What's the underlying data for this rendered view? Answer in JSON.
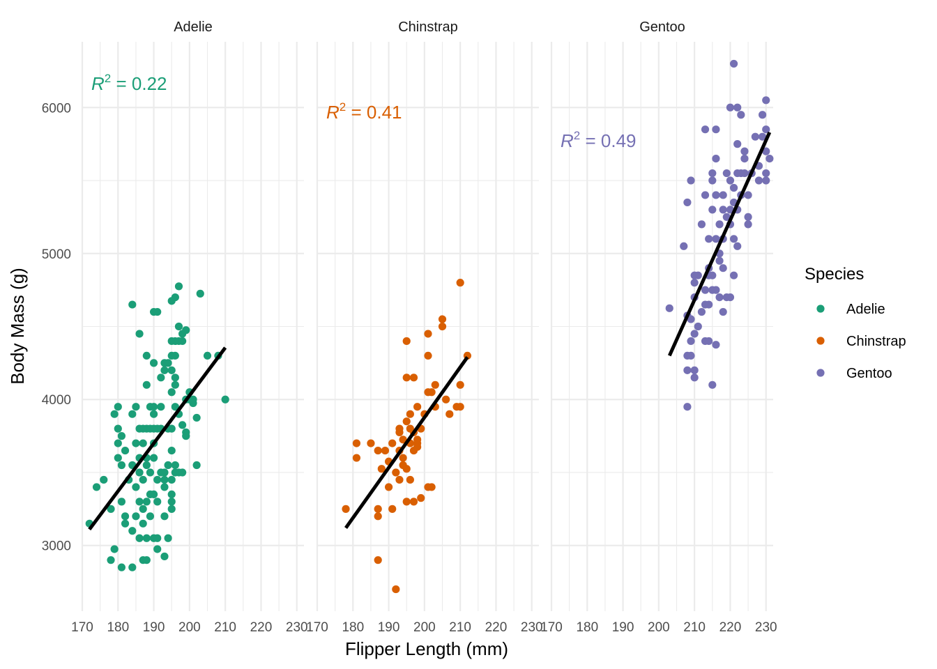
{
  "chart_data": {
    "type": "scatter",
    "xlabel": "Flipper Length (mm)",
    "ylabel": "Body Mass (g)",
    "xlim": [
      170,
      232
    ],
    "ylim": [
      2550,
      6450
    ],
    "x_ticks": [
      170,
      180,
      190,
      200,
      210,
      220,
      230
    ],
    "y_ticks": [
      3000,
      4000,
      5000,
      6000
    ],
    "grid": true,
    "legend": {
      "title": "Species",
      "position": "right",
      "entries": [
        {
          "label": "Adelie",
          "color": "#1B9E77"
        },
        {
          "label": "Chinstrap",
          "color": "#D95F02"
        },
        {
          "label": "Gentoo",
          "color": "#7570B3"
        }
      ]
    },
    "panels": [
      {
        "title": "Adelie",
        "color": "#1B9E77",
        "r2_prefix": "R",
        "r2_exp": "2",
        "r2_value": " = 0.22",
        "fit": {
          "x": [
            172,
            210
          ],
          "y": [
            3110,
            4355
          ]
        },
        "points": [
          [
            172,
            3150
          ],
          [
            174,
            3400
          ],
          [
            176,
            3450
          ],
          [
            178,
            3250
          ],
          [
            178,
            2900
          ],
          [
            179,
            3900
          ],
          [
            179,
            2975
          ],
          [
            180,
            3800
          ],
          [
            180,
            3950
          ],
          [
            180,
            3700
          ],
          [
            180,
            3600
          ],
          [
            181,
            3300
          ],
          [
            181,
            3550
          ],
          [
            181,
            3750
          ],
          [
            181,
            2850
          ],
          [
            182,
            3150
          ],
          [
            182,
            3650
          ],
          [
            182,
            3200
          ],
          [
            183,
            3450
          ],
          [
            184,
            3550
          ],
          [
            184,
            3100
          ],
          [
            184,
            4650
          ],
          [
            184,
            3900
          ],
          [
            184,
            2850
          ],
          [
            185,
            3950
          ],
          [
            185,
            3700
          ],
          [
            185,
            3400
          ],
          [
            185,
            3200
          ],
          [
            186,
            4450
          ],
          [
            186,
            3800
          ],
          [
            186,
            3600
          ],
          [
            186,
            3300
          ],
          [
            186,
            3050
          ],
          [
            186,
            3500
          ],
          [
            187,
            3800
          ],
          [
            187,
            3700
          ],
          [
            187,
            3250
          ],
          [
            187,
            3450
          ],
          [
            187,
            2900
          ],
          [
            187,
            3150
          ],
          [
            188,
            4300
          ],
          [
            188,
            4100
          ],
          [
            188,
            3800
          ],
          [
            188,
            3600
          ],
          [
            188,
            3300
          ],
          [
            188,
            3550
          ],
          [
            188,
            3050
          ],
          [
            188,
            2900
          ],
          [
            189,
            3950
          ],
          [
            189,
            3800
          ],
          [
            189,
            3350
          ],
          [
            189,
            3200
          ],
          [
            189,
            3500
          ],
          [
            190,
            4600
          ],
          [
            190,
            4250
          ],
          [
            190,
            3950
          ],
          [
            190,
            3900
          ],
          [
            190,
            3800
          ],
          [
            190,
            3700
          ],
          [
            190,
            3600
          ],
          [
            190,
            3350
          ],
          [
            190,
            3050
          ],
          [
            191,
            4600
          ],
          [
            191,
            3800
          ],
          [
            191,
            3450
          ],
          [
            191,
            3300
          ],
          [
            191,
            3050
          ],
          [
            191,
            2975
          ],
          [
            192,
            4150
          ],
          [
            192,
            3800
          ],
          [
            192,
            3950
          ],
          [
            192,
            3500
          ],
          [
            193,
            4250
          ],
          [
            193,
            4200
          ],
          [
            193,
            3450
          ],
          [
            193,
            3400
          ],
          [
            193,
            3200
          ],
          [
            193,
            3500
          ],
          [
            193,
            2925
          ],
          [
            194,
            4250
          ],
          [
            194,
            3800
          ],
          [
            194,
            3550
          ],
          [
            194,
            3050
          ],
          [
            195,
            4400
          ],
          [
            195,
            4300
          ],
          [
            195,
            4200
          ],
          [
            195,
            4050
          ],
          [
            195,
            3800
          ],
          [
            195,
            3650
          ],
          [
            195,
            3450
          ],
          [
            195,
            3350
          ],
          [
            195,
            3300
          ],
          [
            195,
            3250
          ],
          [
            195,
            4675
          ],
          [
            196,
            4700
          ],
          [
            196,
            4400
          ],
          [
            196,
            4300
          ],
          [
            196,
            4150
          ],
          [
            196,
            4100
          ],
          [
            196,
            3500
          ],
          [
            196,
            3950
          ],
          [
            196,
            3550
          ],
          [
            197,
            4775
          ],
          [
            197,
            4500
          ],
          [
            197,
            4400
          ],
          [
            197,
            3900
          ],
          [
            197,
            3500
          ],
          [
            198,
            4450
          ],
          [
            198,
            4400
          ],
          [
            198,
            3825
          ],
          [
            198,
            3500
          ],
          [
            199,
            4475
          ],
          [
            199,
            4000
          ],
          [
            199,
            3775
          ],
          [
            199,
            3750
          ],
          [
            200,
            4050
          ],
          [
            200,
            4000
          ],
          [
            201,
            3975
          ],
          [
            201,
            4000
          ],
          [
            202,
            3875
          ],
          [
            202,
            3550
          ],
          [
            203,
            4725
          ],
          [
            205,
            4300
          ],
          [
            208,
            4300
          ],
          [
            210,
            4000
          ]
        ]
      },
      {
        "title": "Chinstrap",
        "color": "#D95F02",
        "r2_prefix": "R",
        "r2_exp": "2",
        "r2_value": " = 0.41",
        "fit": {
          "x": [
            178,
            212
          ],
          "y": [
            3120,
            4290
          ]
        },
        "points": [
          [
            178,
            3250
          ],
          [
            181,
            3700
          ],
          [
            181,
            3600
          ],
          [
            185,
            3700
          ],
          [
            187,
            3650
          ],
          [
            187,
            3250
          ],
          [
            187,
            3200
          ],
          [
            187,
            2900
          ],
          [
            188,
            3525
          ],
          [
            189,
            3650
          ],
          [
            190,
            3575
          ],
          [
            190,
            3400
          ],
          [
            191,
            3700
          ],
          [
            191,
            3250
          ],
          [
            192,
            3500
          ],
          [
            192,
            2700
          ],
          [
            193,
            3800
          ],
          [
            193,
            3775
          ],
          [
            193,
            3650
          ],
          [
            193,
            3450
          ],
          [
            194,
            3600
          ],
          [
            194,
            3550
          ],
          [
            194,
            3725
          ],
          [
            195,
            4400
          ],
          [
            195,
            4150
          ],
          [
            195,
            3850
          ],
          [
            195,
            3525
          ],
          [
            195,
            3300
          ],
          [
            196,
            3900
          ],
          [
            196,
            3800
          ],
          [
            196,
            3700
          ],
          [
            196,
            3450
          ],
          [
            197,
            4150
          ],
          [
            197,
            3650
          ],
          [
            197,
            3300
          ],
          [
            197,
            3775
          ],
          [
            198,
            3950
          ],
          [
            198,
            3700
          ],
          [
            198,
            3675
          ],
          [
            198,
            3725
          ],
          [
            199,
            3800
          ],
          [
            199,
            3325
          ],
          [
            200,
            3900
          ],
          [
            201,
            4450
          ],
          [
            201,
            4300
          ],
          [
            201,
            4050
          ],
          [
            201,
            3400
          ],
          [
            202,
            4050
          ],
          [
            202,
            3400
          ],
          [
            203,
            4100
          ],
          [
            203,
            3950
          ],
          [
            205,
            4550
          ],
          [
            205,
            4500
          ],
          [
            206,
            4000
          ],
          [
            207,
            3900
          ],
          [
            209,
            3950
          ],
          [
            210,
            4800
          ],
          [
            210,
            4100
          ],
          [
            210,
            3950
          ],
          [
            212,
            4300
          ]
        ]
      },
      {
        "title": "Gentoo",
        "color": "#7570B3",
        "r2_prefix": "R",
        "r2_exp": "2",
        "r2_value": " = 0.49",
        "fit": {
          "x": [
            203,
            231
          ],
          "y": [
            4300,
            5830
          ]
        },
        "points": [
          [
            203,
            4625
          ],
          [
            207,
            5050
          ],
          [
            208,
            5350
          ],
          [
            208,
            4575
          ],
          [
            208,
            4300
          ],
          [
            208,
            4200
          ],
          [
            208,
            3950
          ],
          [
            209,
            5500
          ],
          [
            209,
            4400
          ],
          [
            209,
            4300
          ],
          [
            209,
            4550
          ],
          [
            210,
            4800
          ],
          [
            210,
            4700
          ],
          [
            210,
            4850
          ],
          [
            210,
            4200
          ],
          [
            210,
            4150
          ],
          [
            210,
            4450
          ],
          [
            211,
            4850
          ],
          [
            211,
            4500
          ],
          [
            212,
            5200
          ],
          [
            212,
            4600
          ],
          [
            213,
            5850
          ],
          [
            213,
            5400
          ],
          [
            213,
            4750
          ],
          [
            213,
            4650
          ],
          [
            213,
            4400
          ],
          [
            214,
            5100
          ],
          [
            214,
            4850
          ],
          [
            214,
            4650
          ],
          [
            214,
            4400
          ],
          [
            214,
            4900
          ],
          [
            215,
            5550
          ],
          [
            215,
            5500
          ],
          [
            215,
            5300
          ],
          [
            215,
            4750
          ],
          [
            215,
            4850
          ],
          [
            215,
            4100
          ],
          [
            216,
            5850
          ],
          [
            216,
            5650
          ],
          [
            216,
            5400
          ],
          [
            216,
            5100
          ],
          [
            216,
            4750
          ],
          [
            216,
            4375
          ],
          [
            217,
            5200
          ],
          [
            217,
            5000
          ],
          [
            217,
            4700
          ],
          [
            217,
            4950
          ],
          [
            218,
            5400
          ],
          [
            218,
            5300
          ],
          [
            218,
            5100
          ],
          [
            218,
            4900
          ],
          [
            218,
            4600
          ],
          [
            219,
            5250
          ],
          [
            219,
            4700
          ],
          [
            219,
            5550
          ],
          [
            220,
            6000
          ],
          [
            220,
            5500
          ],
          [
            220,
            5300
          ],
          [
            220,
            5200
          ],
          [
            220,
            4700
          ],
          [
            221,
            6300
          ],
          [
            221,
            5450
          ],
          [
            221,
            5350
          ],
          [
            221,
            5100
          ],
          [
            221,
            4850
          ],
          [
            222,
            6000
          ],
          [
            222,
            5750
          ],
          [
            222,
            5550
          ],
          [
            222,
            5300
          ],
          [
            222,
            5050
          ],
          [
            223,
            5950
          ],
          [
            223,
            5550
          ],
          [
            223,
            5400
          ],
          [
            224,
            5650
          ],
          [
            224,
            5700
          ],
          [
            224,
            5550
          ],
          [
            225,
            5400
          ],
          [
            225,
            5250
          ],
          [
            225,
            5200
          ],
          [
            226,
            5550
          ],
          [
            227,
            5800
          ],
          [
            228,
            5600
          ],
          [
            228,
            5500
          ],
          [
            229,
            5950
          ],
          [
            229,
            5800
          ],
          [
            230,
            6050
          ],
          [
            230,
            5850
          ],
          [
            230,
            5700
          ],
          [
            230,
            5500
          ],
          [
            230,
            5550
          ],
          [
            231,
            5650
          ]
        ]
      }
    ]
  }
}
